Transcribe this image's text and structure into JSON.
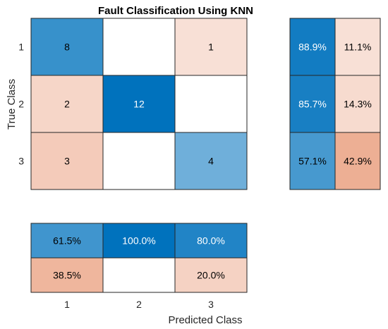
{
  "chart_data": {
    "type": "heatmap",
    "title": "Fault Classification Using KNN",
    "xlabel": "Predicted Class",
    "ylabel": "True Class",
    "classes": [
      "1",
      "2",
      "3"
    ],
    "confusion_matrix": [
      [
        8,
        0,
        1
      ],
      [
        2,
        12,
        0
      ],
      [
        3,
        0,
        4
      ]
    ],
    "row_summary": {
      "correct_pct": [
        "88.9%",
        "85.7%",
        "57.1%"
      ],
      "incorrect_pct": [
        "11.1%",
        "14.3%",
        "42.9%"
      ]
    },
    "column_summary": {
      "correct_pct": [
        "61.5%",
        "100.0%",
        "80.0%"
      ],
      "incorrect_pct": [
        "38.5%",
        "",
        "20.0%"
      ]
    },
    "colors": {
      "correct": "#0072BD",
      "incorrect": "#D95319",
      "empty": "#ffffff",
      "grid": "#262626",
      "text_dark": "#000000",
      "text_light": "#ffffff"
    }
  }
}
